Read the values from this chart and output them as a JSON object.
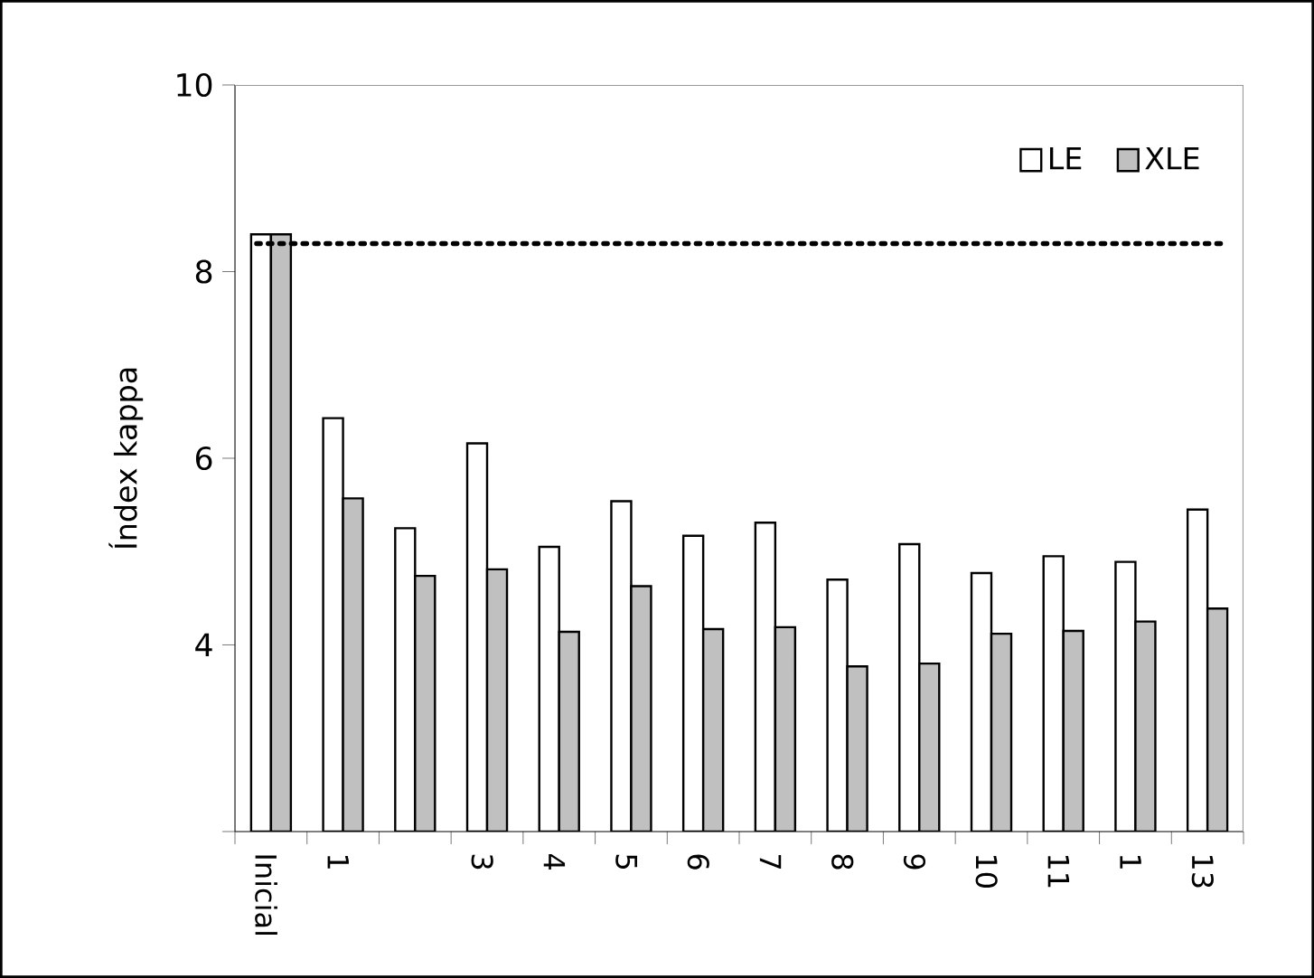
{
  "chart_data": {
    "type": "bar",
    "ylabel": "Índex kappa",
    "categories": [
      "Inicial",
      "1",
      null,
      "3",
      "4",
      "5",
      "6",
      "7",
      "8",
      "9",
      "10",
      "11",
      "1",
      "13"
    ],
    "series": [
      {
        "name": "LE",
        "color": "#ffffff",
        "values": [
          8.4,
          6.43,
          5.25,
          6.16,
          5.05,
          5.54,
          5.17,
          5.31,
          4.7,
          5.08,
          4.77,
          4.95,
          4.89,
          5.45
        ]
      },
      {
        "name": "XLE",
        "color": "#c0c0c0",
        "values": [
          8.4,
          5.57,
          4.74,
          4.81,
          4.14,
          4.63,
          4.17,
          4.19,
          3.77,
          3.8,
          4.12,
          4.15,
          4.25,
          4.39
        ]
      }
    ],
    "ylim": [
      2,
      10
    ],
    "yticks": [
      {
        "value": 2,
        "label": null
      },
      4,
      6,
      8,
      10
    ],
    "ref_lines": [
      {
        "axis": "y",
        "value": 8.3,
        "line_style": "dotted"
      }
    ],
    "legend": "top right",
    "grid": false
  }
}
